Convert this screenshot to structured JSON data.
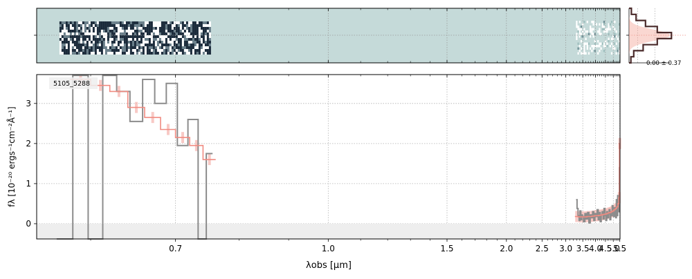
{
  "chart_data": [
    {
      "type": "heatmap",
      "panel": "2d-spectrum",
      "xscale": "reciprocal",
      "xlim": [
        0.55,
        5.52
      ],
      "background_color": "#c5dad9",
      "cmap": [
        "#ffffff",
        "#c5dad9",
        "#1a2a3a"
      ],
      "valid_ranges": [
        [
          0.57,
          0.75
        ],
        [
          3.28,
          5.48
        ]
      ],
      "grid": true
    },
    {
      "type": "histogram",
      "panel": "residual-histogram",
      "annotation": "0.00 ± 0.37",
      "bins": [
        -4,
        -3,
        -2,
        -1,
        0,
        1,
        2,
        3,
        4
      ],
      "counts": [
        0.05,
        0.15,
        0.35,
        0.6,
        0.9,
        0.6,
        0.3,
        0.1,
        0.04
      ],
      "colors": {
        "data": "#4a2a2a",
        "model": "#f4a79a"
      }
    },
    {
      "type": "line",
      "panel": "1d-spectrum",
      "label": "5105_5288",
      "xlabel": "λobs [μm]",
      "ylabel": "fλ [10⁻²⁰ ergs⁻¹cm⁻²Å⁻¹]",
      "xscale": "reciprocal",
      "xlim": [
        0.55,
        5.52
      ],
      "ylim": [
        -0.38,
        3.72
      ],
      "xticks": [
        0.7,
        1.0,
        1.5,
        2.0,
        2.5,
        3.0,
        3.5,
        4.0,
        4.5,
        5.0,
        5.5
      ],
      "xtick_labels": [
        "0.7",
        "1.0",
        "1.5",
        "2.0",
        "2.5",
        "3.0",
        "3.5",
        "4.0",
        "4.5",
        "5.0",
        "5.5"
      ],
      "yticks": [
        0,
        1,
        2,
        3
      ],
      "ytick_labels": [
        "0",
        "1",
        "2",
        "3"
      ],
      "grid": true,
      "colors": {
        "data": "#8c8c8c",
        "model": "#f08a80",
        "model_err": "#f6b8b2",
        "zero_band": "#eeeeee"
      },
      "series": [
        {
          "role": "data",
          "segments": [
            {
              "x": [
                0.575,
                0.59,
                0.605,
                0.62,
                0.635,
                0.65,
                0.665,
                0.68,
                0.695,
                0.71,
                0.725,
                0.74,
                0.75
              ],
              "y": [
                -0.4,
                3.7,
                -0.4,
                3.7,
                3.3,
                2.55,
                3.6,
                3.0,
                3.5,
                1.95,
                2.6,
                -0.4,
                1.75
              ]
            },
            {
              "x": [
                3.3,
                3.33,
                3.36,
                3.39,
                3.42,
                3.45,
                3.48,
                3.5,
                3.55,
                3.6,
                3.65,
                3.7,
                3.75,
                3.8,
                3.85,
                3.9,
                3.95,
                4.0,
                4.05,
                4.1,
                4.15,
                4.2,
                4.25,
                4.3,
                4.35,
                4.4,
                4.45,
                4.5,
                4.55,
                4.6,
                4.65,
                4.7,
                4.75,
                4.8,
                4.85,
                4.9,
                4.95,
                5.0,
                5.05,
                5.1,
                5.15,
                5.2,
                5.25,
                5.3,
                5.35,
                5.4,
                5.45,
                5.48,
                5.5
              ],
              "y": [
                0.6,
                0.38,
                0.2,
                0.08,
                0.32,
                0.1,
                0.22,
                0.18,
                0.05,
                0.25,
                0.12,
                0.28,
                0.02,
                0.22,
                0.15,
                0.3,
                0.08,
                0.25,
                0.18,
                0.35,
                0.1,
                0.28,
                0.05,
                0.22,
                0.3,
                0.12,
                0.38,
                0.2,
                0.08,
                0.3,
                0.15,
                0.25,
                0.35,
                0.1,
                0.3,
                0.2,
                0.45,
                0.25,
                0.18,
                0.4,
                0.3,
                0.15,
                0.6,
                0.2,
                0.7,
                0.35,
                0.3,
                1.4,
                0.9
              ]
            }
          ]
        },
        {
          "role": "model",
          "segments": [
            {
              "x": [
                0.59,
                0.61,
                0.63,
                0.65,
                0.67,
                0.69,
                0.71,
                0.73,
                0.75
              ],
              "y": [
                3.6,
                3.45,
                3.3,
                2.9,
                2.65,
                2.35,
                2.15,
                1.95,
                1.6
              ]
            },
            {
              "x": [
                3.3,
                3.4,
                3.5,
                3.6,
                3.7,
                3.8,
                3.9,
                4.0,
                4.1,
                4.2,
                4.3,
                4.4,
                4.5,
                4.6,
                4.7,
                4.8,
                4.9,
                5.0,
                5.1,
                5.2,
                5.3,
                5.4,
                5.45,
                5.5
              ],
              "y": [
                0.18,
                0.17,
                0.17,
                0.17,
                0.18,
                0.18,
                0.19,
                0.2,
                0.2,
                0.21,
                0.22,
                0.23,
                0.24,
                0.25,
                0.27,
                0.28,
                0.3,
                0.32,
                0.35,
                0.38,
                0.42,
                0.5,
                0.65,
                2.0
              ]
            }
          ]
        }
      ]
    }
  ]
}
